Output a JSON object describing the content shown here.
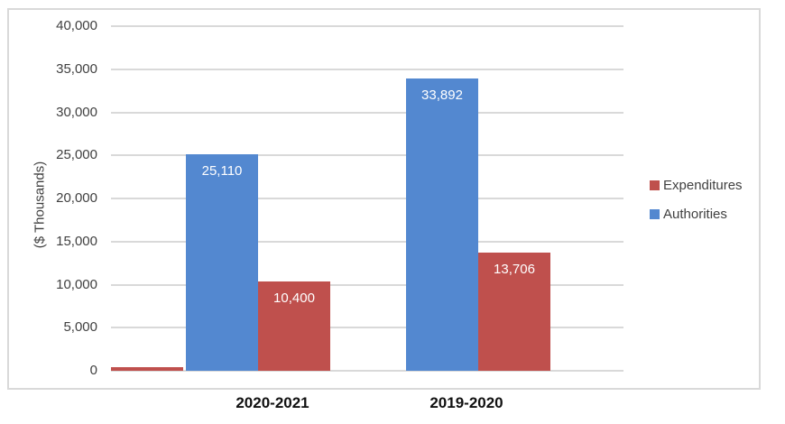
{
  "chart_data": {
    "type": "bar",
    "title": "",
    "xlabel": "",
    "ylabel": "($ Thousands)",
    "categories": [
      "2020-2021",
      "2019-2020"
    ],
    "series": [
      {
        "name": "Expenditures",
        "color": "#bf504d",
        "values": [
          10400,
          13706
        ],
        "value_labels": [
          "10,400",
          "13,706"
        ]
      },
      {
        "name": "Authorities",
        "color": "#5388d0",
        "values": [
          25110,
          33892
        ],
        "value_labels": [
          "25,110",
          "33,892"
        ]
      }
    ],
    "baseline_fragment": {
      "series": "Expenditures",
      "value": 400
    },
    "ylim": [
      0,
      40000
    ],
    "yticks": [
      0,
      5000,
      10000,
      15000,
      20000,
      25000,
      30000,
      35000,
      40000
    ],
    "ytick_labels": [
      "0",
      "5,000",
      "10,000",
      "15,000",
      "20,000",
      "25,000",
      "30,000",
      "35,000",
      "40,000"
    ],
    "grid": true,
    "legend_position": "right",
    "legend": [
      "Expenditures",
      "Authorities"
    ]
  },
  "colors": {
    "frame": "#d9d9d9",
    "gridline": "#d9d9d9",
    "axis_text": "#404040",
    "category_text": "#111111",
    "bar_label_text": "#ffffff",
    "expenditures": "#bf504d",
    "authorities": "#5388d0"
  }
}
